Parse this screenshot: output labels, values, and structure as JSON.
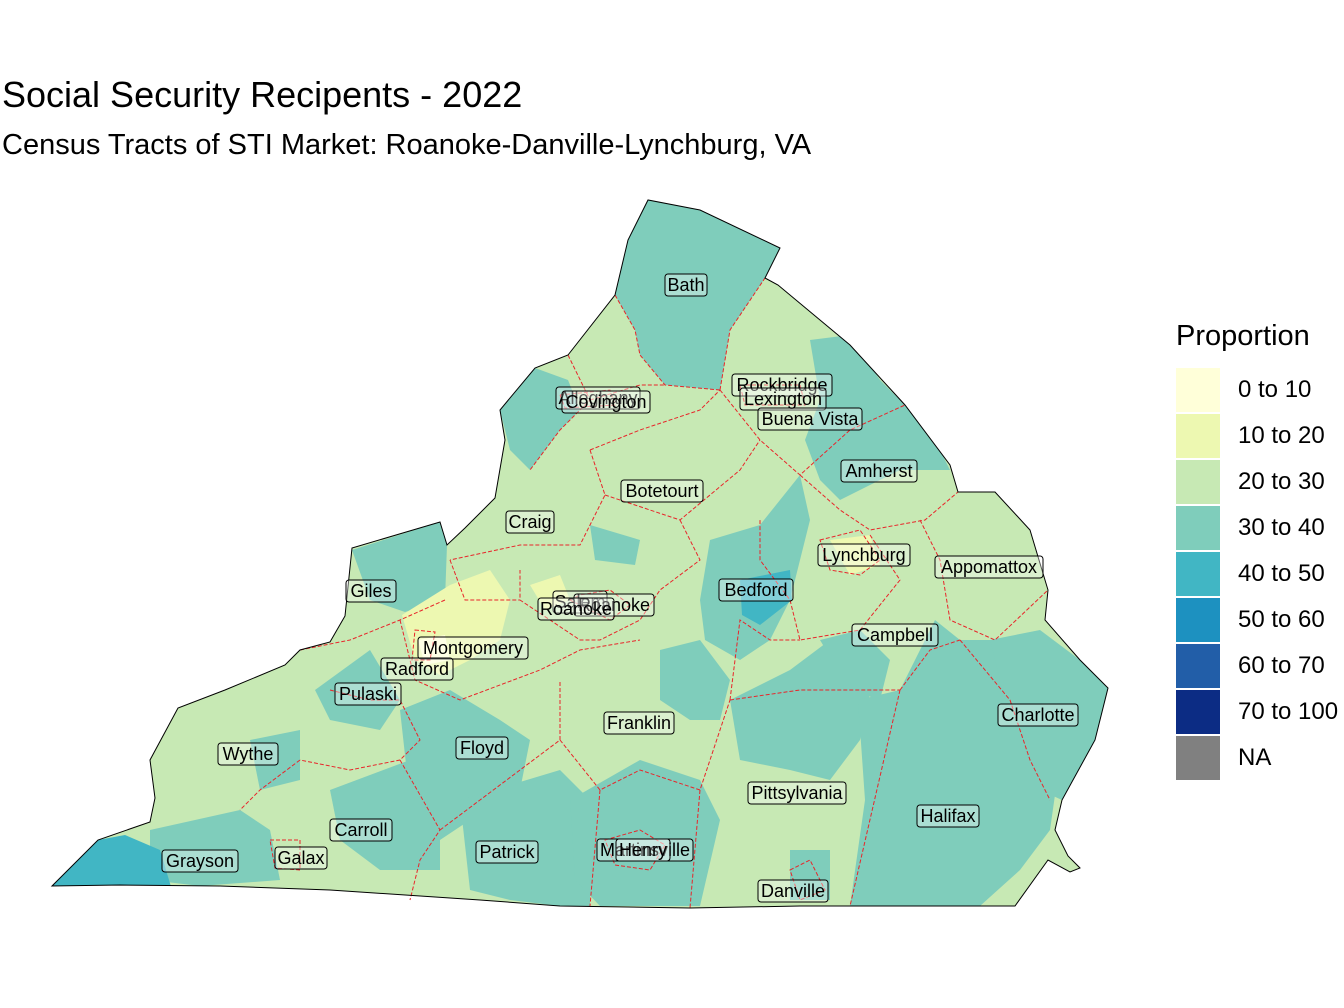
{
  "title": "Social Security Recipents - 2022",
  "subtitle": "Census Tracts of STI Market: Roanoke-Danville-Lynchburg, VA",
  "legend": {
    "title": "Proportion",
    "items": [
      {
        "label": "0 to 10",
        "color": "#ffffd9"
      },
      {
        "label": "10 to 20",
        "color": "#edf8b1"
      },
      {
        "label": "20 to 30",
        "color": "#c7e9b4"
      },
      {
        "label": "30 to 40",
        "color": "#7fcdbb"
      },
      {
        "label": "40 to 50",
        "color": "#41b6c4"
      },
      {
        "label": "50 to 60",
        "color": "#1d91c0"
      },
      {
        "label": "60 to 70",
        "color": "#225ea8"
      },
      {
        "label": "70 to 100",
        "color": "#0c2c84"
      },
      {
        "label": "NA",
        "color": "#808080"
      }
    ]
  },
  "colors": {
    "boundary": "#e8252a",
    "outline": "#000000"
  },
  "counties": {
    "bath": "Bath",
    "alleghany": "Alleghany",
    "covington": "Covington",
    "rockbridge": "Rockbridge",
    "lexington": "Lexington",
    "buena_vista": "Buena Vista",
    "botetourt": "Botetourt",
    "amherst": "Amherst",
    "craig": "Craig",
    "lynchburg": "Lynchburg",
    "appomattox": "Appomattox",
    "giles": "Giles",
    "bedford": "Bedford",
    "salem": "Salem",
    "roanoke_city": "Roanoke",
    "roanoke_county": "Roanoke",
    "montgomery": "Montgomery",
    "campbell": "Campbell",
    "radford": "Radford",
    "pulaski": "Pulaski",
    "franklin": "Franklin",
    "charlotte": "Charlotte",
    "wythe": "Wythe",
    "floyd": "Floyd",
    "pittsylvania": "Pittsylvania",
    "halifax": "Halifax",
    "carroll": "Carroll",
    "patrick": "Patrick",
    "martinsville": "Martinsville",
    "henry": "Henry",
    "grayson": "Grayson",
    "galax": "Galax",
    "danville": "Danville"
  }
}
